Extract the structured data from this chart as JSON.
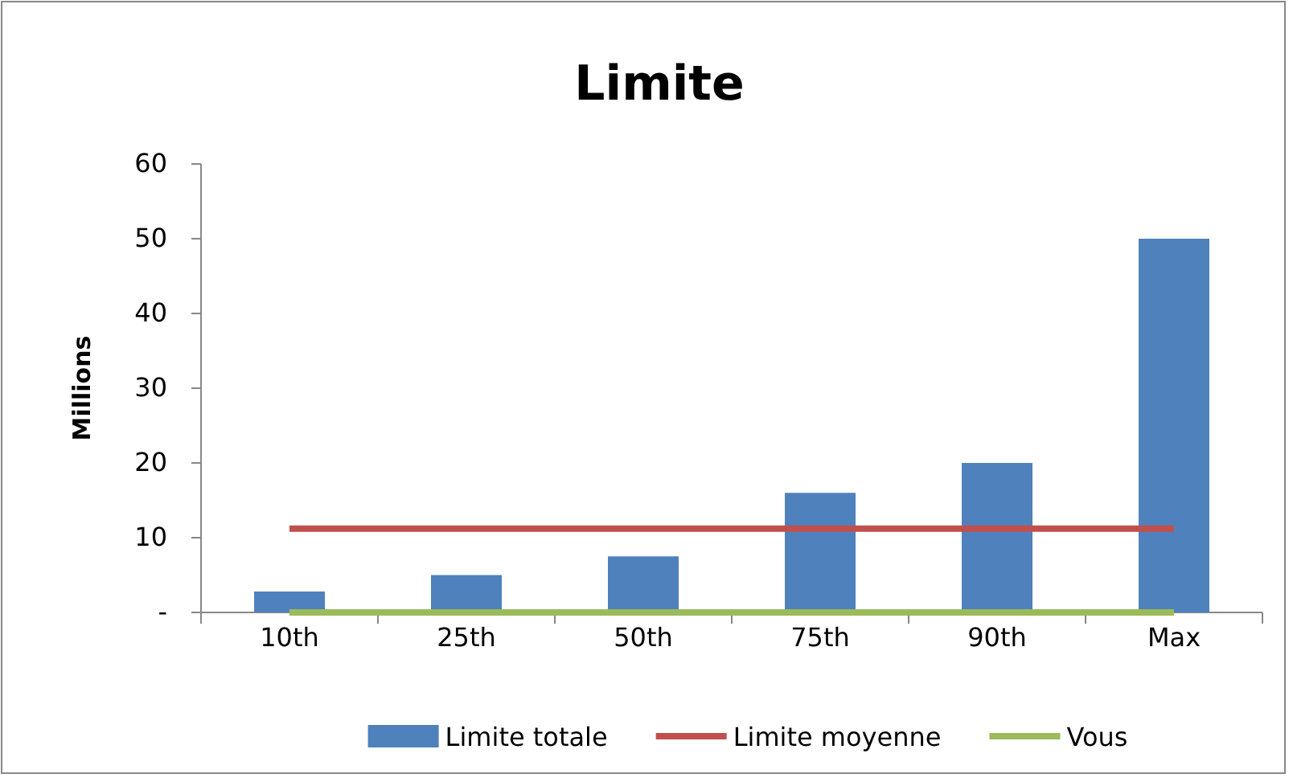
{
  "chart_data": {
    "type": "bar",
    "title": "Limite",
    "ylabel": "Millions",
    "categories": [
      "10th",
      "25th",
      "50th",
      "75th",
      "90th",
      "Max"
    ],
    "series": [
      {
        "name": "Limite totale",
        "color": "#4f81bd",
        "values": [
          2.8,
          5,
          7.5,
          16,
          20,
          50
        ]
      },
      {
        "name": "Limite moyenne",
        "type": "line",
        "color": "#c0504d",
        "values": [
          11.2,
          11.2,
          11.2,
          11.2,
          11.2,
          11.2
        ]
      },
      {
        "name": "Vous",
        "type": "line",
        "color": "#9bbb59",
        "values": [
          0,
          0,
          0,
          0,
          0,
          0
        ]
      }
    ],
    "ylim": [
      0,
      60
    ],
    "yticks": [
      {
        "value": 0,
        "label": "-"
      },
      10,
      20,
      30,
      40,
      50,
      60
    ],
    "legend": "bottom"
  }
}
